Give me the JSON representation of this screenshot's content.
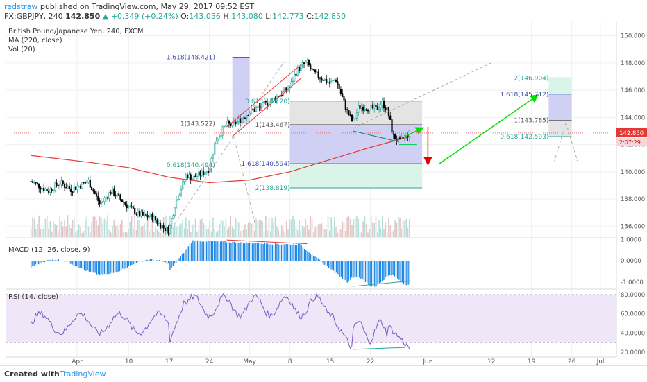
{
  "header": {
    "author": "redstraw",
    "published_text": "published on TradingView.com, May 29, 2017 09:52 EST",
    "symbol": "FX:GBPJPY, 240",
    "last": "142.850",
    "change": "▲ +0.349 (+0.24%)",
    "ohlc_o_label": "O:",
    "ohlc_o": "143.056",
    "ohlc_h_label": "H:",
    "ohlc_h": "143.080",
    "ohlc_l_label": "L:",
    "ohlc_l": "142.773",
    "ohlc_c_label": "C:",
    "ohlc_c": "142.850"
  },
  "footer": {
    "created_with": "Created with",
    "brand": "TradingView"
  },
  "colors": {
    "up": "#26a69a",
    "down": "#000000",
    "ma": "#e53935",
    "macd": "#1e88e5",
    "rsi": "#7e57c2",
    "fib_blue": "#3949ab",
    "fib_green": "#26a69a",
    "arrow_green": "#00e000",
    "arrow_red": "#e60000"
  },
  "chart_data": {
    "type": "candlestick",
    "title": "British Pound/Japanese Yen, 240, FXCM",
    "indicators": [
      "MA (220, close)",
      "Vol (20)"
    ],
    "price_axis": {
      "ylim": [
        135.2,
        151.0
      ],
      "ticks": [
        "136.000",
        "138.000",
        "140.000",
        "142.000",
        "144.000",
        "146.000",
        "148.000",
        "150.000"
      ]
    },
    "last_price_label": "142.850",
    "countdown_label": "2:07:29",
    "x_ticks": [
      {
        "label": "Apr",
        "date": "2017-04-01"
      },
      {
        "label": "10",
        "date": "2017-04-10"
      },
      {
        "label": "17",
        "date": "2017-04-17"
      },
      {
        "label": "24",
        "date": "2017-04-24"
      },
      {
        "label": "May",
        "date": "2017-05-01"
      },
      {
        "label": "8",
        "date": "2017-05-08"
      },
      {
        "label": "15",
        "date": "2017-05-15"
      },
      {
        "label": "22",
        "date": "2017-05-22"
      },
      {
        "label": "Jun",
        "date": "2017-06-01"
      },
      {
        "label": "12",
        "date": "2017-06-12"
      },
      {
        "label": "19",
        "date": "2017-06-19"
      },
      {
        "label": "26",
        "date": "2017-06-26"
      },
      {
        "label": "Jul",
        "date": "2017-07-01"
      }
    ],
    "price_path": [
      [
        "2017-03-24",
        139.3
      ],
      [
        "2017-03-27",
        138.6
      ],
      [
        "2017-03-29",
        139.2
      ],
      [
        "2017-03-31",
        138.7
      ],
      [
        "2017-04-03",
        139.3
      ],
      [
        "2017-04-05",
        137.6
      ],
      [
        "2017-04-07",
        138.6
      ],
      [
        "2017-04-10",
        137.4
      ],
      [
        "2017-04-12",
        136.8
      ],
      [
        "2017-04-14",
        136.7
      ],
      [
        "2017-04-16",
        135.9
      ],
      [
        "2017-04-17",
        135.7
      ],
      [
        "2017-04-18",
        137.6
      ],
      [
        "2017-04-20",
        139.8
      ],
      [
        "2017-04-21",
        139.5
      ],
      [
        "2017-04-24",
        140.2
      ],
      [
        "2017-04-25",
        142.2
      ],
      [
        "2017-04-26",
        142.9
      ],
      [
        "2017-04-27",
        143.5
      ],
      [
        "2017-04-28",
        143.4
      ],
      [
        "2017-05-01",
        144.4
      ],
      [
        "2017-05-03",
        144.8
      ],
      [
        "2017-05-05",
        145.3
      ],
      [
        "2017-05-08",
        146.2
      ],
      [
        "2017-05-09",
        147.3
      ],
      [
        "2017-05-10",
        147.8
      ],
      [
        "2017-05-11",
        148.0
      ],
      [
        "2017-05-12",
        147.3
      ],
      [
        "2017-05-15",
        146.5
      ],
      [
        "2017-05-16",
        146.8
      ],
      [
        "2017-05-17",
        145.6
      ],
      [
        "2017-05-18",
        144.4
      ],
      [
        "2017-05-19",
        143.6
      ],
      [
        "2017-05-20",
        144.8
      ],
      [
        "2017-05-22",
        144.7
      ],
      [
        "2017-05-23",
        144.6
      ],
      [
        "2017-05-24",
        145.1
      ],
      [
        "2017-05-25",
        144.5
      ],
      [
        "2017-05-26",
        142.6
      ],
      [
        "2017-05-27",
        142.2
      ],
      [
        "2017-05-28",
        142.6
      ],
      [
        "2017-05-29",
        142.85
      ]
    ],
    "ma_path": [
      [
        "2017-03-24",
        141.2
      ],
      [
        "2017-04-03",
        140.7
      ],
      [
        "2017-04-10",
        140.3
      ],
      [
        "2017-04-17",
        139.6
      ],
      [
        "2017-04-24",
        139.2
      ],
      [
        "2017-05-01",
        139.4
      ],
      [
        "2017-05-08",
        140.0
      ],
      [
        "2017-05-15",
        140.9
      ],
      [
        "2017-05-22",
        141.8
      ],
      [
        "2017-05-29",
        142.6
      ]
    ],
    "fib_labels": [
      {
        "text": "1.618(148.421)",
        "date": "2017-04-25",
        "price": 148.421,
        "color": "blue"
      },
      {
        "text": "1(143.522)",
        "date": "2017-04-25",
        "price": 143.522,
        "color": "gray"
      },
      {
        "text": "0.618(140.494)",
        "date": "2017-04-25",
        "price": 140.494,
        "color": "green"
      },
      {
        "text": "0.618(145.20)",
        "date": "2017-05-08",
        "price": 145.2,
        "color": "green"
      },
      {
        "text": "1(143.467)",
        "date": "2017-05-08",
        "price": 143.467,
        "color": "gray"
      },
      {
        "text": "1.618(140.594)",
        "date": "2017-05-08",
        "price": 140.594,
        "color": "blue"
      },
      {
        "text": "2(138.819)",
        "date": "2017-05-08",
        "price": 138.819,
        "color": "green"
      },
      {
        "text": "2(146.904)",
        "date": "2017-06-22",
        "price": 146.904,
        "color": "green"
      },
      {
        "text": "1.618(145.712)",
        "date": "2017-06-22",
        "price": 145.712,
        "color": "blue"
      },
      {
        "text": "1(143.785)",
        "date": "2017-06-22",
        "price": 143.785,
        "color": "gray"
      },
      {
        "text": "0.618(142.593)",
        "date": "2017-06-22",
        "price": 142.593,
        "color": "green"
      }
    ],
    "macd": {
      "label": "MACD (12, 26, close, 9)",
      "ylim": [
        -1.3,
        1.05
      ],
      "ticks": [
        "1.0000",
        "0.0000",
        "-1.0000"
      ]
    },
    "rsi": {
      "label": "RSI (14, close)",
      "ylim": [
        15,
        85
      ],
      "ticks": [
        "80.0000",
        "60.0000",
        "40.0000",
        "20.0000"
      ]
    }
  }
}
